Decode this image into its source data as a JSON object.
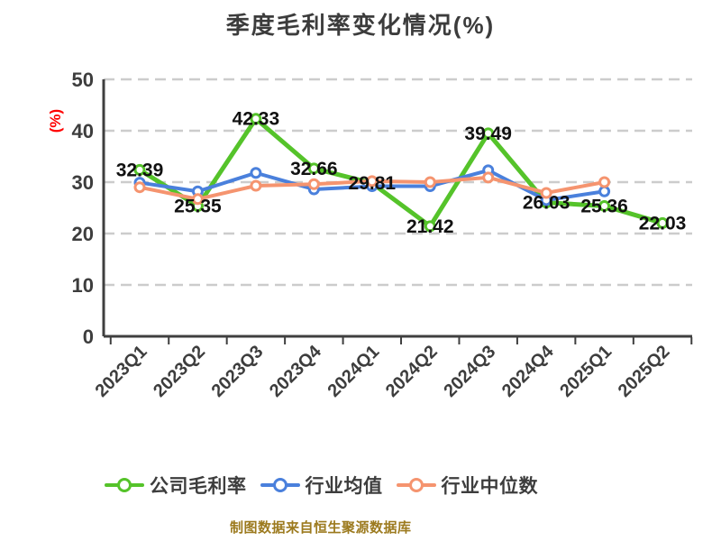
{
  "chart_data": {
    "type": "line",
    "title": "季度毛利率变化情况(%)",
    "ylabel": "(%)",
    "source_note": "制图数据来自恒生聚源数据库",
    "categories": [
      "2023Q1",
      "2023Q2",
      "2023Q3",
      "2023Q4",
      "2024Q1",
      "2024Q2",
      "2024Q3",
      "2024Q4",
      "2025Q1",
      "2025Q2"
    ],
    "y_ticks": [
      0,
      10,
      20,
      30,
      40,
      50
    ],
    "ylim": [
      0,
      50
    ],
    "grid": "horizontal-dashed",
    "legend_position": "bottom",
    "series": [
      {
        "key": "company-gross-margin",
        "name": "公司毛利率",
        "color": "#55c32a",
        "labels_shown": true,
        "values": [
          32.39,
          25.35,
          42.33,
          32.66,
          29.81,
          21.42,
          39.49,
          26.03,
          25.36,
          22.03
        ]
      },
      {
        "key": "industry-mean",
        "name": "行业均值",
        "color": "#4a80dc",
        "labels_shown": false,
        "values": [
          29.9,
          28.2,
          31.8,
          28.6,
          29.2,
          29.2,
          32.3,
          26.5,
          28.2,
          null
        ]
      },
      {
        "key": "industry-median",
        "name": "行业中位数",
        "color": "#f5946f",
        "labels_shown": false,
        "values": [
          29.0,
          26.7,
          29.3,
          29.6,
          30.2,
          30.0,
          30.9,
          27.9,
          30.0,
          null
        ]
      }
    ],
    "colors": {
      "axis": "#3f3f3f",
      "tick_label": "#3d3d3d",
      "grid": "#cccccc",
      "data_label": "#111111",
      "unit_label": "#ff0000",
      "source_note": "#9c7a1e",
      "marker_fill": "#ffffff"
    }
  }
}
